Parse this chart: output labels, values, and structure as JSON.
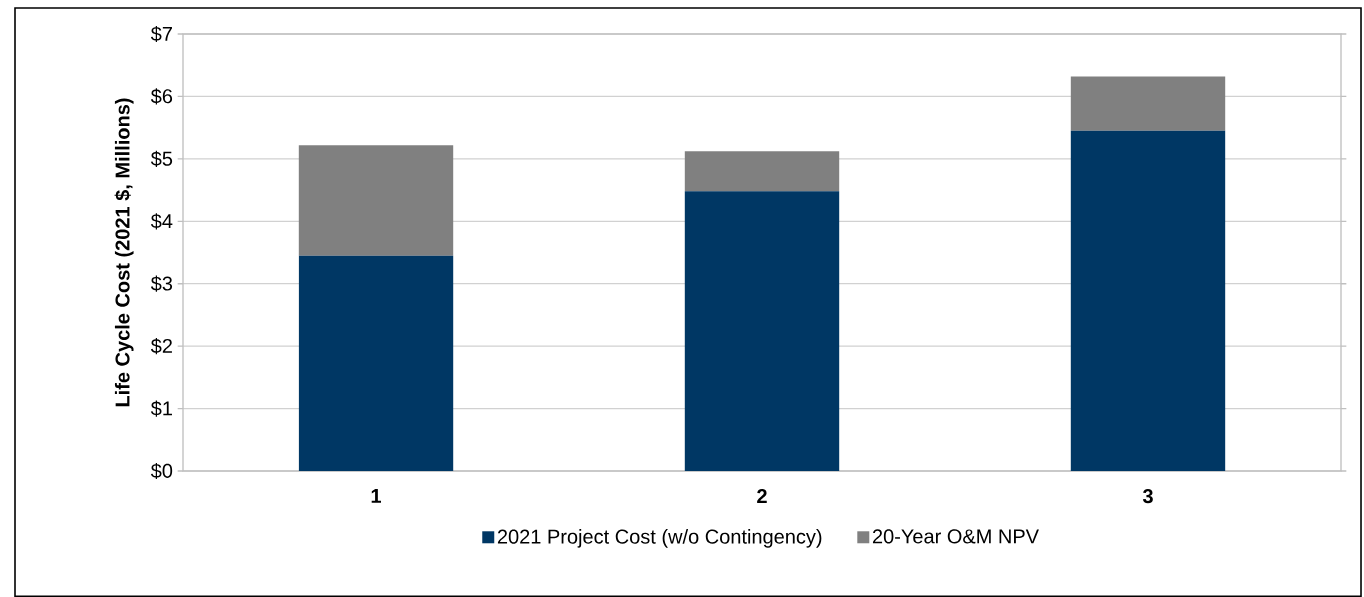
{
  "chart_data": {
    "type": "bar",
    "stacked": true,
    "ylabel": "Life Cycle Cost (2021 $, Millions)",
    "categories": [
      "1",
      "2",
      "3"
    ],
    "series": [
      {
        "name": "2021 Project Cost (w/o Contingency)",
        "color": "#003764",
        "values": [
          3.45,
          4.48,
          5.45
        ]
      },
      {
        "name": "20-Year O&M NPV",
        "color": "#808080",
        "values": [
          1.77,
          0.64,
          0.87
        ]
      }
    ],
    "ylim": [
      0,
      7
    ],
    "yticks": [
      {
        "value": 0,
        "label": "$0"
      },
      {
        "value": 1,
        "label": "$1"
      },
      {
        "value": 2,
        "label": "$2"
      },
      {
        "value": 3,
        "label": "$3"
      },
      {
        "value": 4,
        "label": "$4"
      },
      {
        "value": 5,
        "label": "$5"
      },
      {
        "value": 6,
        "label": "$6"
      },
      {
        "value": 7,
        "label": "$7"
      }
    ],
    "grid": "y",
    "legend": "bottom"
  }
}
